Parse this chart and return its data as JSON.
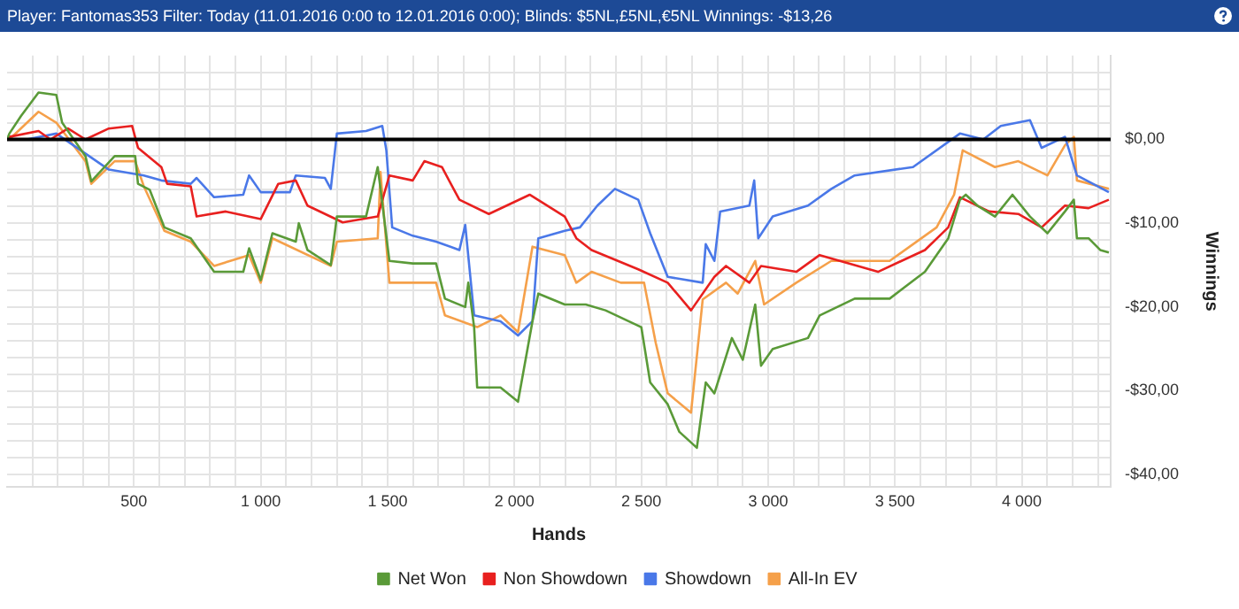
{
  "chart_data": {
    "type": "line",
    "title": "Player: Fantomas353 Filter: Today (11.01.2016 0:00 to 12.01.2016 0:00); Blinds: $5NL,£5NL,€5NL Winnings: -$13,26",
    "xlabel": "Hands",
    "ylabel": "Winnings",
    "xlim": [
      0,
      4350
    ],
    "ylim": [
      -41.5,
      10
    ],
    "xticks": [
      {
        "value": 100,
        "label": null
      },
      {
        "value": 200,
        "label": null
      },
      {
        "value": 300,
        "label": null
      },
      {
        "value": 400,
        "label": null
      },
      {
        "value": 500,
        "label": "500"
      },
      {
        "value": 600,
        "label": null
      },
      {
        "value": 700,
        "label": null
      },
      {
        "value": 800,
        "label": null
      },
      {
        "value": 900,
        "label": null
      },
      {
        "value": 1000,
        "label": "1 000"
      },
      {
        "value": 1100,
        "label": null
      },
      {
        "value": 1200,
        "label": null
      },
      {
        "value": 1300,
        "label": null
      },
      {
        "value": 1400,
        "label": null
      },
      {
        "value": 1500,
        "label": "1 500"
      },
      {
        "value": 1600,
        "label": null
      },
      {
        "value": 1700,
        "label": null
      },
      {
        "value": 1800,
        "label": null
      },
      {
        "value": 1900,
        "label": null
      },
      {
        "value": 2000,
        "label": "2 000"
      },
      {
        "value": 2100,
        "label": null
      },
      {
        "value": 2200,
        "label": null
      },
      {
        "value": 2300,
        "label": null
      },
      {
        "value": 2400,
        "label": null
      },
      {
        "value": 2500,
        "label": "2 500"
      },
      {
        "value": 2600,
        "label": null
      },
      {
        "value": 2700,
        "label": null
      },
      {
        "value": 2800,
        "label": null
      },
      {
        "value": 2900,
        "label": null
      },
      {
        "value": 3000,
        "label": "3 000"
      },
      {
        "value": 3100,
        "label": null
      },
      {
        "value": 3200,
        "label": null
      },
      {
        "value": 3300,
        "label": null
      },
      {
        "value": 3400,
        "label": null
      },
      {
        "value": 3500,
        "label": "3 500"
      },
      {
        "value": 3600,
        "label": null
      },
      {
        "value": 3700,
        "label": null
      },
      {
        "value": 3800,
        "label": null
      },
      {
        "value": 3900,
        "label": null
      },
      {
        "value": 4000,
        "label": "4 000"
      },
      {
        "value": 4100,
        "label": null
      },
      {
        "value": 4200,
        "label": null
      },
      {
        "value": 4300,
        "label": null
      }
    ],
    "yticks": [
      {
        "value": -40,
        "label": "-$40,00"
      },
      {
        "value": -38,
        "label": null
      },
      {
        "value": -36,
        "label": null
      },
      {
        "value": -34,
        "label": null
      },
      {
        "value": -32,
        "label": null
      },
      {
        "value": -30,
        "label": "-$30,00"
      },
      {
        "value": -28,
        "label": null
      },
      {
        "value": -26,
        "label": null
      },
      {
        "value": -24,
        "label": null
      },
      {
        "value": -22,
        "label": null
      },
      {
        "value": -20,
        "label": "-$20,00"
      },
      {
        "value": -18,
        "label": null
      },
      {
        "value": -16,
        "label": null
      },
      {
        "value": -14,
        "label": null
      },
      {
        "value": -12,
        "label": null
      },
      {
        "value": -10,
        "label": "-$10,00"
      },
      {
        "value": -8,
        "label": null
      },
      {
        "value": -6,
        "label": null
      },
      {
        "value": -4,
        "label": null
      },
      {
        "value": -2,
        "label": null
      },
      {
        "value": 0,
        "label": "$0,00"
      },
      {
        "value": 2,
        "label": null
      },
      {
        "value": 4,
        "label": null
      },
      {
        "value": 6,
        "label": null
      },
      {
        "value": 8,
        "label": null
      }
    ],
    "grid": true,
    "legend": "bottom",
    "marker": "none",
    "ref_lines": [
      {
        "axis": "y",
        "value": 0,
        "color": "#000000"
      }
    ],
    "series": [
      {
        "name": "Net Won",
        "color": "#5a9a38",
        "x": [
          0,
          9,
          55,
          124,
          194,
          217,
          309,
          332,
          424,
          505,
          516,
          562,
          620,
          724,
          816,
          931,
          954,
          1000,
          1046,
          1138,
          1150,
          1184,
          1276,
          1300,
          1415,
          1461,
          1472,
          1507,
          1599,
          1691,
          1726,
          1806,
          1818,
          1841,
          1853,
          1945,
          2014,
          2071,
          2094,
          2198,
          2281,
          2359,
          2500,
          2535,
          2604,
          2650,
          2719,
          2754,
          2788,
          2857,
          2900,
          2949,
          2972,
          3018,
          3157,
          3203,
          3341,
          3479,
          3618,
          3710,
          3756,
          3779,
          3825,
          3894,
          3963,
          4032,
          4101,
          4170,
          4205,
          4217,
          4263,
          4309,
          4343
        ],
        "values": [
          0,
          0.7,
          2.8,
          5.6,
          5.3,
          2,
          -2,
          -5,
          -2,
          -2,
          -5.3,
          -6,
          -10.5,
          -11.8,
          -15.8,
          -15.8,
          -13,
          -16.8,
          -11.2,
          -12.2,
          -10,
          -13.2,
          -15,
          -9.2,
          -9.2,
          -3.3,
          -5.9,
          -14.5,
          -14.8,
          -14.8,
          -19,
          -20,
          -17.1,
          -22.4,
          -29.6,
          -29.6,
          -31.3,
          -21.7,
          -18.4,
          -19.7,
          -19.7,
          -20.4,
          -22.4,
          -29,
          -31.6,
          -34.9,
          -36.8,
          -29,
          -30.3,
          -23.7,
          -26.3,
          -19.7,
          -27,
          -25,
          -23.7,
          -21,
          -19,
          -19,
          -15.8,
          -11.8,
          -7.2,
          -6.6,
          -7.9,
          -9.2,
          -6.6,
          -9.2,
          -11.2,
          -8.6,
          -7.2,
          -11.8,
          -11.8,
          -13.2,
          -13.5
        ]
      },
      {
        "name": "Non Showdown",
        "color": "#e8201f",
        "x": [
          0,
          9,
          124,
          171,
          240,
          309,
          401,
          493,
          516,
          608,
          631,
          724,
          747,
          862,
          1000,
          1069,
          1138,
          1184,
          1323,
          1461,
          1507,
          1599,
          1645,
          1714,
          1783,
          1899,
          2060,
          2198,
          2244,
          2304,
          2488,
          2604,
          2696,
          2788,
          2834,
          2926,
          2972,
          3111,
          3203,
          3433,
          3618,
          3710,
          3756,
          3871,
          3986,
          4078,
          4170,
          4263,
          4343
        ],
        "values": [
          0,
          0.3,
          1,
          0,
          1.3,
          0,
          1.3,
          1.6,
          -1,
          -3.3,
          -5.3,
          -5.6,
          -9.2,
          -8.6,
          -9.5,
          -5.3,
          -4.9,
          -7.9,
          -9.9,
          -9.2,
          -4.3,
          -4.9,
          -2.6,
          -3.3,
          -7.2,
          -8.9,
          -6.6,
          -9.2,
          -11.8,
          -13.2,
          -15.5,
          -17.1,
          -20.4,
          -16.4,
          -15.1,
          -17.1,
          -15.1,
          -15.8,
          -13.8,
          -15.8,
          -13.2,
          -10.5,
          -6.9,
          -8.6,
          -8.9,
          -10.5,
          -7.9,
          -8.2,
          -7.2
        ]
      },
      {
        "name": "Showdown",
        "color": "#4a78e8",
        "x": [
          0,
          78,
          194,
          401,
          539,
          608,
          724,
          747,
          816,
          931,
          954,
          1000,
          1115,
          1138,
          1253,
          1276,
          1300,
          1415,
          1479,
          1495,
          1518,
          1599,
          1691,
          1783,
          1806,
          1841,
          1945,
          2014,
          2071,
          2094,
          2198,
          2258,
          2327,
          2396,
          2488,
          2535,
          2604,
          2742,
          2754,
          2788,
          2811,
          2926,
          2945,
          2961,
          3018,
          3157,
          3249,
          3341,
          3571,
          3756,
          3848,
          3917,
          4032,
          4078,
          4170,
          4217,
          4343
        ],
        "values": [
          0,
          0,
          0.7,
          -3.6,
          -4.3,
          -4.9,
          -5.3,
          -4.6,
          -6.9,
          -6.6,
          -4.3,
          -6.3,
          -6.3,
          -4.3,
          -4.6,
          -5.9,
          0.7,
          1,
          1.6,
          -1.3,
          -10.5,
          -11.5,
          -12.2,
          -13.2,
          -10.2,
          -21,
          -21.7,
          -23.4,
          -21.7,
          -11.8,
          -10.9,
          -10.5,
          -7.9,
          -5.9,
          -7.2,
          -11.2,
          -16.4,
          -17.1,
          -12.5,
          -14.5,
          -8.6,
          -7.9,
          -4.9,
          -11.8,
          -9.2,
          -7.9,
          -5.9,
          -4.3,
          -3.3,
          0.7,
          0,
          1.6,
          2.3,
          -1,
          0.3,
          -4.3,
          -6.3
        ]
      },
      {
        "name": "All-In EV",
        "color": "#f5a04a",
        "x": [
          0,
          9,
          124,
          194,
          309,
          332,
          424,
          505,
          539,
          620,
          724,
          816,
          954,
          1000,
          1046,
          1276,
          1300,
          1461,
          1472,
          1507,
          1691,
          1726,
          1853,
          1945,
          2014,
          2071,
          2198,
          2244,
          2304,
          2419,
          2511,
          2557,
          2604,
          2696,
          2742,
          2834,
          2880,
          2949,
          2984,
          3111,
          3249,
          3479,
          3664,
          3733,
          3767,
          3894,
          3986,
          4101,
          4170,
          4205,
          4217,
          4343
        ],
        "values": [
          0,
          0,
          3.3,
          2,
          -2.6,
          -5.3,
          -2.6,
          -2.6,
          -5.6,
          -10.9,
          -12.2,
          -15.1,
          -13.8,
          -17.1,
          -11.8,
          -15.1,
          -12.2,
          -11.8,
          -3.9,
          -17.1,
          -17.1,
          -21,
          -22.4,
          -21,
          -23,
          -12.8,
          -13.8,
          -17.1,
          -15.8,
          -17.1,
          -17.1,
          -24.3,
          -30.3,
          -32.6,
          -19.1,
          -17.1,
          -18.4,
          -14.5,
          -19.7,
          -17.1,
          -14.5,
          -14.5,
          -10.5,
          -6.6,
          -1.3,
          -3.3,
          -2.6,
          -4.3,
          -0.7,
          0.3,
          -4.9,
          -5.9
        ]
      }
    ]
  }
}
